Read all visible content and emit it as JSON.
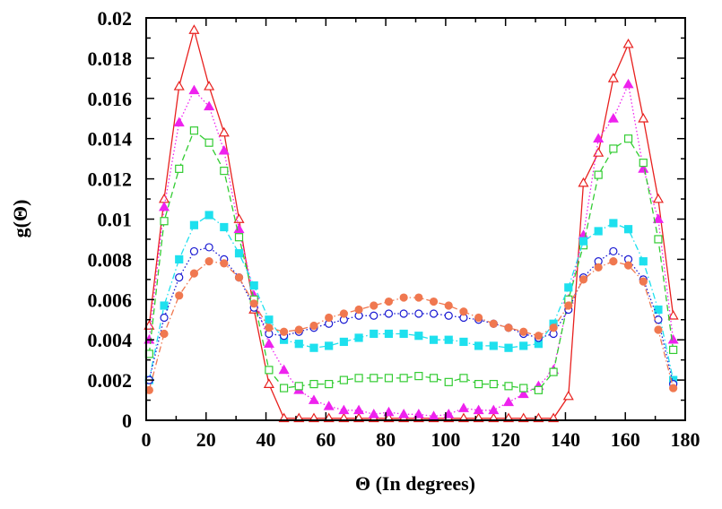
{
  "chart_data": {
    "type": "line",
    "title": "",
    "xlabel": "Θ (In degrees)",
    "ylabel": "g(Θ)",
    "xlim": [
      0,
      180
    ],
    "ylim": [
      0,
      0.02
    ],
    "xticks": [
      0,
      20,
      40,
      60,
      80,
      100,
      120,
      140,
      160,
      180
    ],
    "xtick_labels": [
      "0",
      "20",
      "40",
      "60",
      "80",
      "100",
      "120",
      "140",
      "160",
      "180"
    ],
    "yticks": [
      0,
      0.002,
      0.004,
      0.006,
      0.008,
      0.01,
      0.012,
      0.014,
      0.016,
      0.018,
      0.02
    ],
    "ytick_labels": [
      "0",
      "0.002",
      "0.004",
      "0.006",
      "0.008",
      "0.01",
      "0.012",
      "0.014",
      "0.016",
      "0.018",
      "0.02"
    ],
    "grid": false,
    "legend": "none",
    "x": [
      1,
      6,
      11,
      16,
      21,
      26,
      31,
      36,
      41,
      46,
      51,
      56,
      61,
      66,
      71,
      76,
      81,
      86,
      91,
      96,
      101,
      106,
      111,
      116,
      121,
      126,
      131,
      136,
      141,
      146,
      151,
      156,
      161,
      166,
      171,
      176
    ],
    "series": [
      {
        "name": "series-1",
        "color": "#e8201e",
        "marker": "triangle-open",
        "line": "solid",
        "values": [
          0.0047,
          0.011,
          0.0166,
          0.0194,
          0.0166,
          0.0143,
          0.01,
          0.0055,
          0.0018,
          0.0001,
          0.0001,
          0.0001,
          0.0001,
          0.0001,
          0.0001,
          0.0001,
          0.0001,
          0.0001,
          0.0001,
          0.0001,
          0.0001,
          0.0001,
          0.0001,
          0.0001,
          0.0001,
          0.0001,
          0.0001,
          0.0001,
          0.0012,
          0.0118,
          0.0133,
          0.017,
          0.0187,
          0.015,
          0.011,
          0.0052
        ]
      },
      {
        "name": "series-2",
        "color": "#ee22ee",
        "marker": "triangle-filled",
        "line": "dotted",
        "values": [
          0.004,
          0.0106,
          0.0148,
          0.0164,
          0.0156,
          0.0134,
          0.0095,
          0.0062,
          0.0038,
          0.0025,
          0.0015,
          0.001,
          0.0007,
          0.0005,
          0.0005,
          0.0003,
          0.0004,
          0.0003,
          0.0003,
          0.0002,
          0.0003,
          0.0006,
          0.0005,
          0.0005,
          0.0009,
          0.0013,
          0.0017,
          0.0025,
          0.006,
          0.0092,
          0.014,
          0.015,
          0.0167,
          0.0125,
          0.01,
          0.004
        ]
      },
      {
        "name": "series-3",
        "color": "#33cc33",
        "marker": "square-open",
        "line": "dashed",
        "values": [
          0.0033,
          0.0099,
          0.0125,
          0.0144,
          0.0138,
          0.0124,
          0.0091,
          0.006,
          0.0025,
          0.0016,
          0.0017,
          0.0018,
          0.0018,
          0.002,
          0.0021,
          0.0021,
          0.0021,
          0.0021,
          0.0022,
          0.0021,
          0.0019,
          0.0021,
          0.0018,
          0.0018,
          0.0017,
          0.0016,
          0.0015,
          0.0024,
          0.006,
          0.0087,
          0.0122,
          0.0135,
          0.014,
          0.0128,
          0.009,
          0.0035
        ]
      },
      {
        "name": "series-4",
        "color": "#1ee0ee",
        "marker": "square-filled",
        "line": "dash-dot",
        "values": [
          0.002,
          0.0057,
          0.008,
          0.0097,
          0.0102,
          0.0096,
          0.0083,
          0.0067,
          0.005,
          0.004,
          0.0038,
          0.0036,
          0.0037,
          0.0039,
          0.0041,
          0.0043,
          0.0043,
          0.0043,
          0.0042,
          0.004,
          0.004,
          0.0039,
          0.0037,
          0.0037,
          0.0036,
          0.0037,
          0.0038,
          0.0048,
          0.0066,
          0.0089,
          0.0094,
          0.0098,
          0.0095,
          0.0079,
          0.0055,
          0.002
        ]
      },
      {
        "name": "series-5",
        "color": "#1a1ad2",
        "marker": "circle-open",
        "line": "dotted",
        "values": [
          0.002,
          0.0051,
          0.0071,
          0.0084,
          0.0086,
          0.008,
          0.0071,
          0.0056,
          0.0043,
          0.0042,
          0.0044,
          0.0046,
          0.0048,
          0.005,
          0.0052,
          0.0052,
          0.0053,
          0.0053,
          0.0053,
          0.0053,
          0.0052,
          0.0051,
          0.005,
          0.0048,
          0.0046,
          0.0043,
          0.0041,
          0.0043,
          0.0055,
          0.0071,
          0.0079,
          0.0084,
          0.008,
          0.007,
          0.005,
          0.0018
        ]
      },
      {
        "name": "series-6",
        "color": "#f07850",
        "marker": "circle-filled",
        "line": "dash-dot",
        "values": [
          0.0015,
          0.0043,
          0.0062,
          0.0073,
          0.0079,
          0.0078,
          0.0071,
          0.0058,
          0.0046,
          0.0044,
          0.0045,
          0.0047,
          0.0051,
          0.0053,
          0.0055,
          0.0057,
          0.0059,
          0.0061,
          0.0061,
          0.0059,
          0.0057,
          0.0054,
          0.0051,
          0.0048,
          0.0046,
          0.0044,
          0.0042,
          0.0046,
          0.0057,
          0.007,
          0.0076,
          0.0079,
          0.0077,
          0.0069,
          0.0045,
          0.0016
        ]
      }
    ]
  }
}
